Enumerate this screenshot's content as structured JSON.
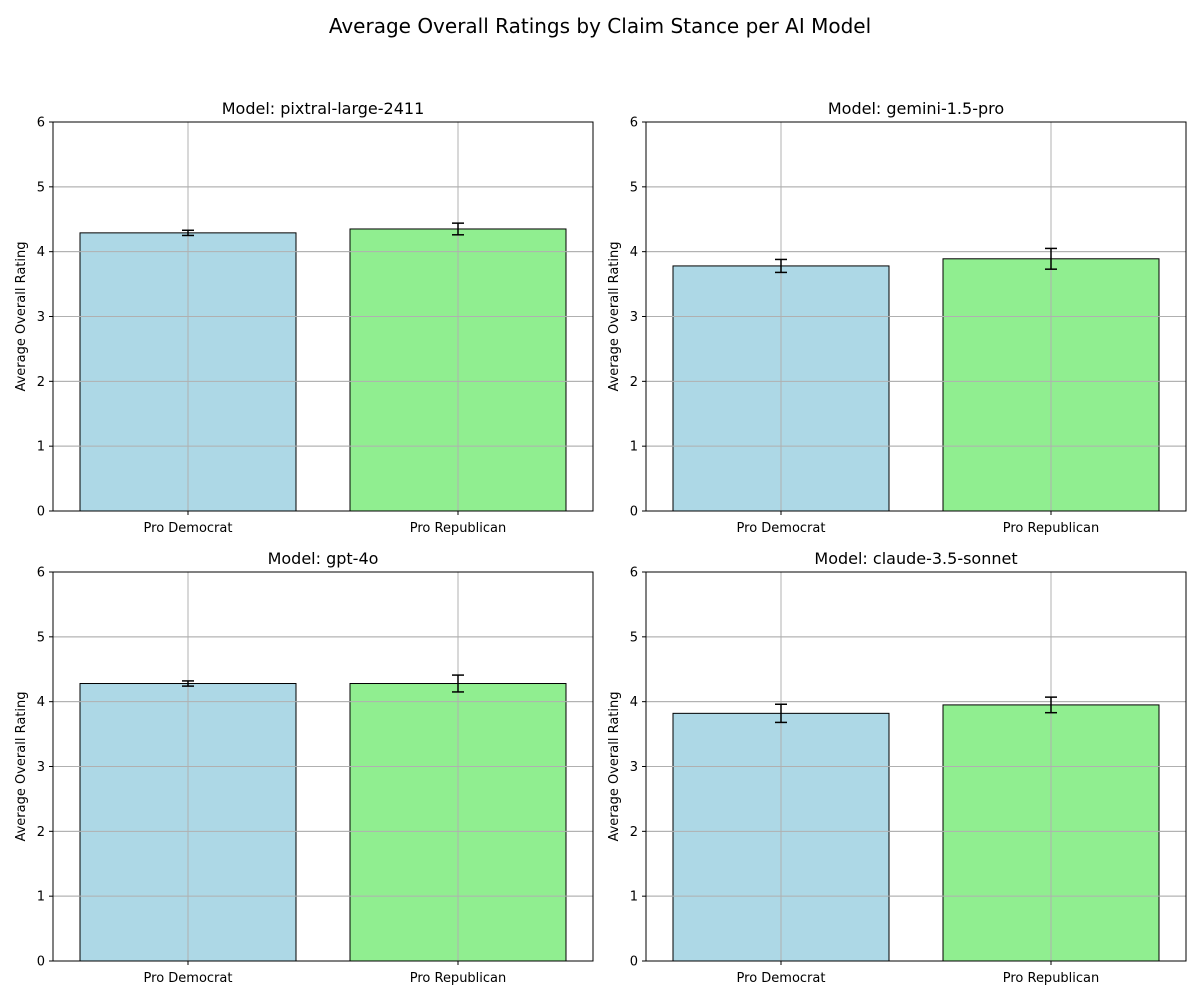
{
  "figure": {
    "suptitle": "Average Overall Ratings by Claim Stance per AI Model"
  },
  "colors": {
    "pro_democrat": "#add8e6",
    "pro_republican": "#90ee90",
    "grid": "#b0b0b0",
    "edge": "#000000"
  },
  "chart_data": [
    {
      "type": "bar",
      "title": "Model: pixtral-large-2411",
      "ylabel": "Average Overall Rating",
      "xlabel": "",
      "ylim": [
        0,
        6
      ],
      "yticks": [
        0,
        1,
        2,
        3,
        4,
        5,
        6
      ],
      "grid": true,
      "categories": [
        "Pro Democrat",
        "Pro Republican"
      ],
      "values": [
        4.29,
        4.35
      ],
      "errors": [
        0.04,
        0.09
      ]
    },
    {
      "type": "bar",
      "title": "Model: gemini-1.5-pro",
      "ylabel": "Average Overall Rating",
      "xlabel": "",
      "ylim": [
        0,
        6
      ],
      "yticks": [
        0,
        1,
        2,
        3,
        4,
        5,
        6
      ],
      "grid": true,
      "categories": [
        "Pro Democrat",
        "Pro Republican"
      ],
      "values": [
        3.78,
        3.89
      ],
      "errors": [
        0.1,
        0.16
      ]
    },
    {
      "type": "bar",
      "title": "Model: gpt-4o",
      "ylabel": "Average Overall Rating",
      "xlabel": "",
      "ylim": [
        0,
        6
      ],
      "yticks": [
        0,
        1,
        2,
        3,
        4,
        5,
        6
      ],
      "grid": true,
      "categories": [
        "Pro Democrat",
        "Pro Republican"
      ],
      "values": [
        4.28,
        4.28
      ],
      "errors": [
        0.04,
        0.13
      ]
    },
    {
      "type": "bar",
      "title": "Model: claude-3.5-sonnet",
      "ylabel": "Average Overall Rating",
      "xlabel": "",
      "ylim": [
        0,
        6
      ],
      "yticks": [
        0,
        1,
        2,
        3,
        4,
        5,
        6
      ],
      "grid": true,
      "categories": [
        "Pro Democrat",
        "Pro Republican"
      ],
      "values": [
        3.82,
        3.95
      ],
      "errors": [
        0.14,
        0.12
      ]
    }
  ]
}
